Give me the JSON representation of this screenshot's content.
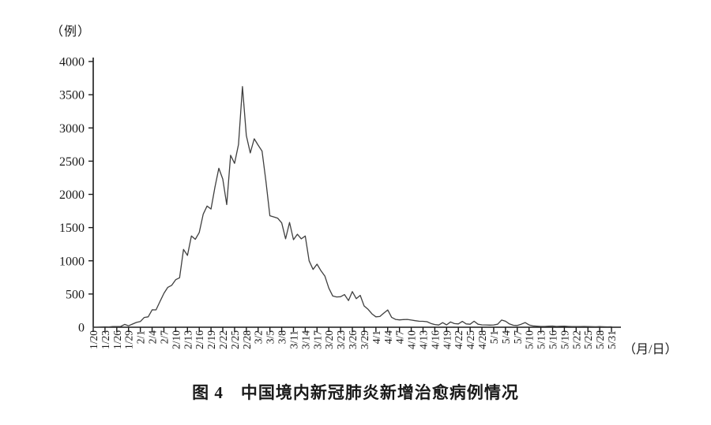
{
  "figure": {
    "y_axis_unit": "（例）",
    "x_axis_unit": "（月/日）",
    "caption": "图 4　中国境内新冠肺炎新增治愈病例情况"
  },
  "chart_data": {
    "type": "line",
    "title": "图 4 中国境内新冠肺炎新增治愈病例情况",
    "ylabel": "（例）",
    "xlabel": "（月/日）",
    "ylim": [
      0,
      4000
    ],
    "y_ticks": [
      0,
      500,
      1000,
      1500,
      2000,
      2500,
      3000,
      3500,
      4000
    ],
    "x_tick_every": 3,
    "grid": false,
    "legend": "none",
    "line_color": "#3f3f3f",
    "axis_color": "#1a1a1a",
    "x": [
      "1/20",
      "1/21",
      "1/22",
      "1/23",
      "1/24",
      "1/25",
      "1/26",
      "1/27",
      "1/28",
      "1/29",
      "1/30",
      "1/31",
      "2/1",
      "2/2",
      "2/3",
      "2/4",
      "2/5",
      "2/6",
      "2/7",
      "2/8",
      "2/9",
      "2/10",
      "2/11",
      "2/12",
      "2/13",
      "2/14",
      "2/15",
      "2/16",
      "2/17",
      "2/18",
      "2/19",
      "2/20",
      "2/21",
      "2/22",
      "2/23",
      "2/24",
      "2/25",
      "2/26",
      "2/27",
      "2/28",
      "2/29",
      "3/1",
      "3/2",
      "3/3",
      "3/4",
      "3/5",
      "3/6",
      "3/7",
      "3/8",
      "3/9",
      "3/10",
      "3/11",
      "3/12",
      "3/13",
      "3/14",
      "3/15",
      "3/16",
      "3/17",
      "3/18",
      "3/19",
      "3/20",
      "3/21",
      "3/22",
      "3/23",
      "3/24",
      "3/25",
      "3/26",
      "3/27",
      "3/28",
      "3/29",
      "3/30",
      "3/31",
      "4/1",
      "4/2",
      "4/3",
      "4/4",
      "4/5",
      "4/6",
      "4/7",
      "4/8",
      "4/9",
      "4/10",
      "4/11",
      "4/12",
      "4/13",
      "4/14",
      "4/15",
      "4/16",
      "4/17",
      "4/18",
      "4/19",
      "4/20",
      "4/21",
      "4/22",
      "4/23",
      "4/24",
      "4/25",
      "4/26",
      "4/27",
      "4/28",
      "4/29",
      "4/30",
      "5/1",
      "5/2",
      "5/3",
      "5/4",
      "5/5",
      "5/6",
      "5/7",
      "5/8",
      "5/9",
      "5/10",
      "5/11",
      "5/12",
      "5/13",
      "5/14",
      "5/15",
      "5/16",
      "5/17",
      "5/18",
      "5/19",
      "5/20",
      "5/21",
      "5/22",
      "5/23",
      "5/24",
      "5/25",
      "5/26",
      "5/27",
      "5/28",
      "5/29",
      "5/30",
      "5/31"
    ],
    "values": [
      0,
      0,
      3,
      6,
      3,
      11,
      9,
      12,
      43,
      21,
      47,
      72,
      85,
      147,
      157,
      262,
      261,
      387,
      510,
      600,
      632,
      716,
      744,
      1171,
      1081,
      1373,
      1323,
      1425,
      1701,
      1824,
      1779,
      2109,
      2393,
      2230,
      1846,
      2589,
      2467,
      2750,
      3622,
      2885,
      2623,
      2837,
      2742,
      2652,
      2189,
      1678,
      1661,
      1640,
      1570,
      1330,
      1578,
      1318,
      1399,
      1330,
      1373,
      1000,
      870,
      950,
      850,
      770,
      590,
      470,
      456,
      459,
      491,
      401,
      537,
      430,
      480,
      320,
      270,
      200,
      157,
      161,
      213,
      260,
      150,
      118,
      110,
      115,
      118,
      108,
      98,
      90,
      89,
      83,
      57,
      40,
      33,
      69,
      36,
      80,
      55,
      50,
      88,
      50,
      45,
      90,
      45,
      36,
      35,
      32,
      35,
      45,
      108,
      90,
      50,
      30,
      26,
      45,
      70,
      35,
      20,
      16,
      12,
      12,
      15,
      18,
      12,
      14,
      16,
      12,
      10,
      9,
      11,
      12,
      10,
      8,
      7,
      9,
      7,
      6,
      7
    ]
  }
}
